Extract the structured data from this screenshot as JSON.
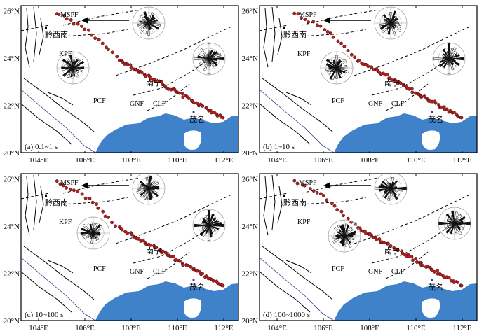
{
  "panels": [
    {
      "label": "(a) 0.1~1 s"
    },
    {
      "label": "(b) 1~10 s"
    },
    {
      "label": "(c) 10~100 s"
    },
    {
      "label": "(d) 100~1000 s"
    }
  ],
  "axes": {
    "x_ticks": [
      "104°E",
      "106°E",
      "108°E",
      "110°E",
      "112°E"
    ],
    "y_ticks": [
      "20°N",
      "22°N",
      "24°N",
      "26°N"
    ]
  },
  "labels": {
    "mspf": "MSPF",
    "qianxinan": "黔西南",
    "kpf": "KPF",
    "pcf": "PCF",
    "gnf": "GNF",
    "clf": "CLF",
    "nanning": "南宁",
    "maoming": "茂名"
  },
  "colors": {
    "sea": "#3f82c9",
    "station": "#b81e1e",
    "fault": "#000000",
    "rose_grid": "#9a9a9a",
    "petal": "#111111"
  },
  "icons": [
    "arrow-icon",
    "rose-diagram-icon",
    "station-marker-icon"
  ]
}
